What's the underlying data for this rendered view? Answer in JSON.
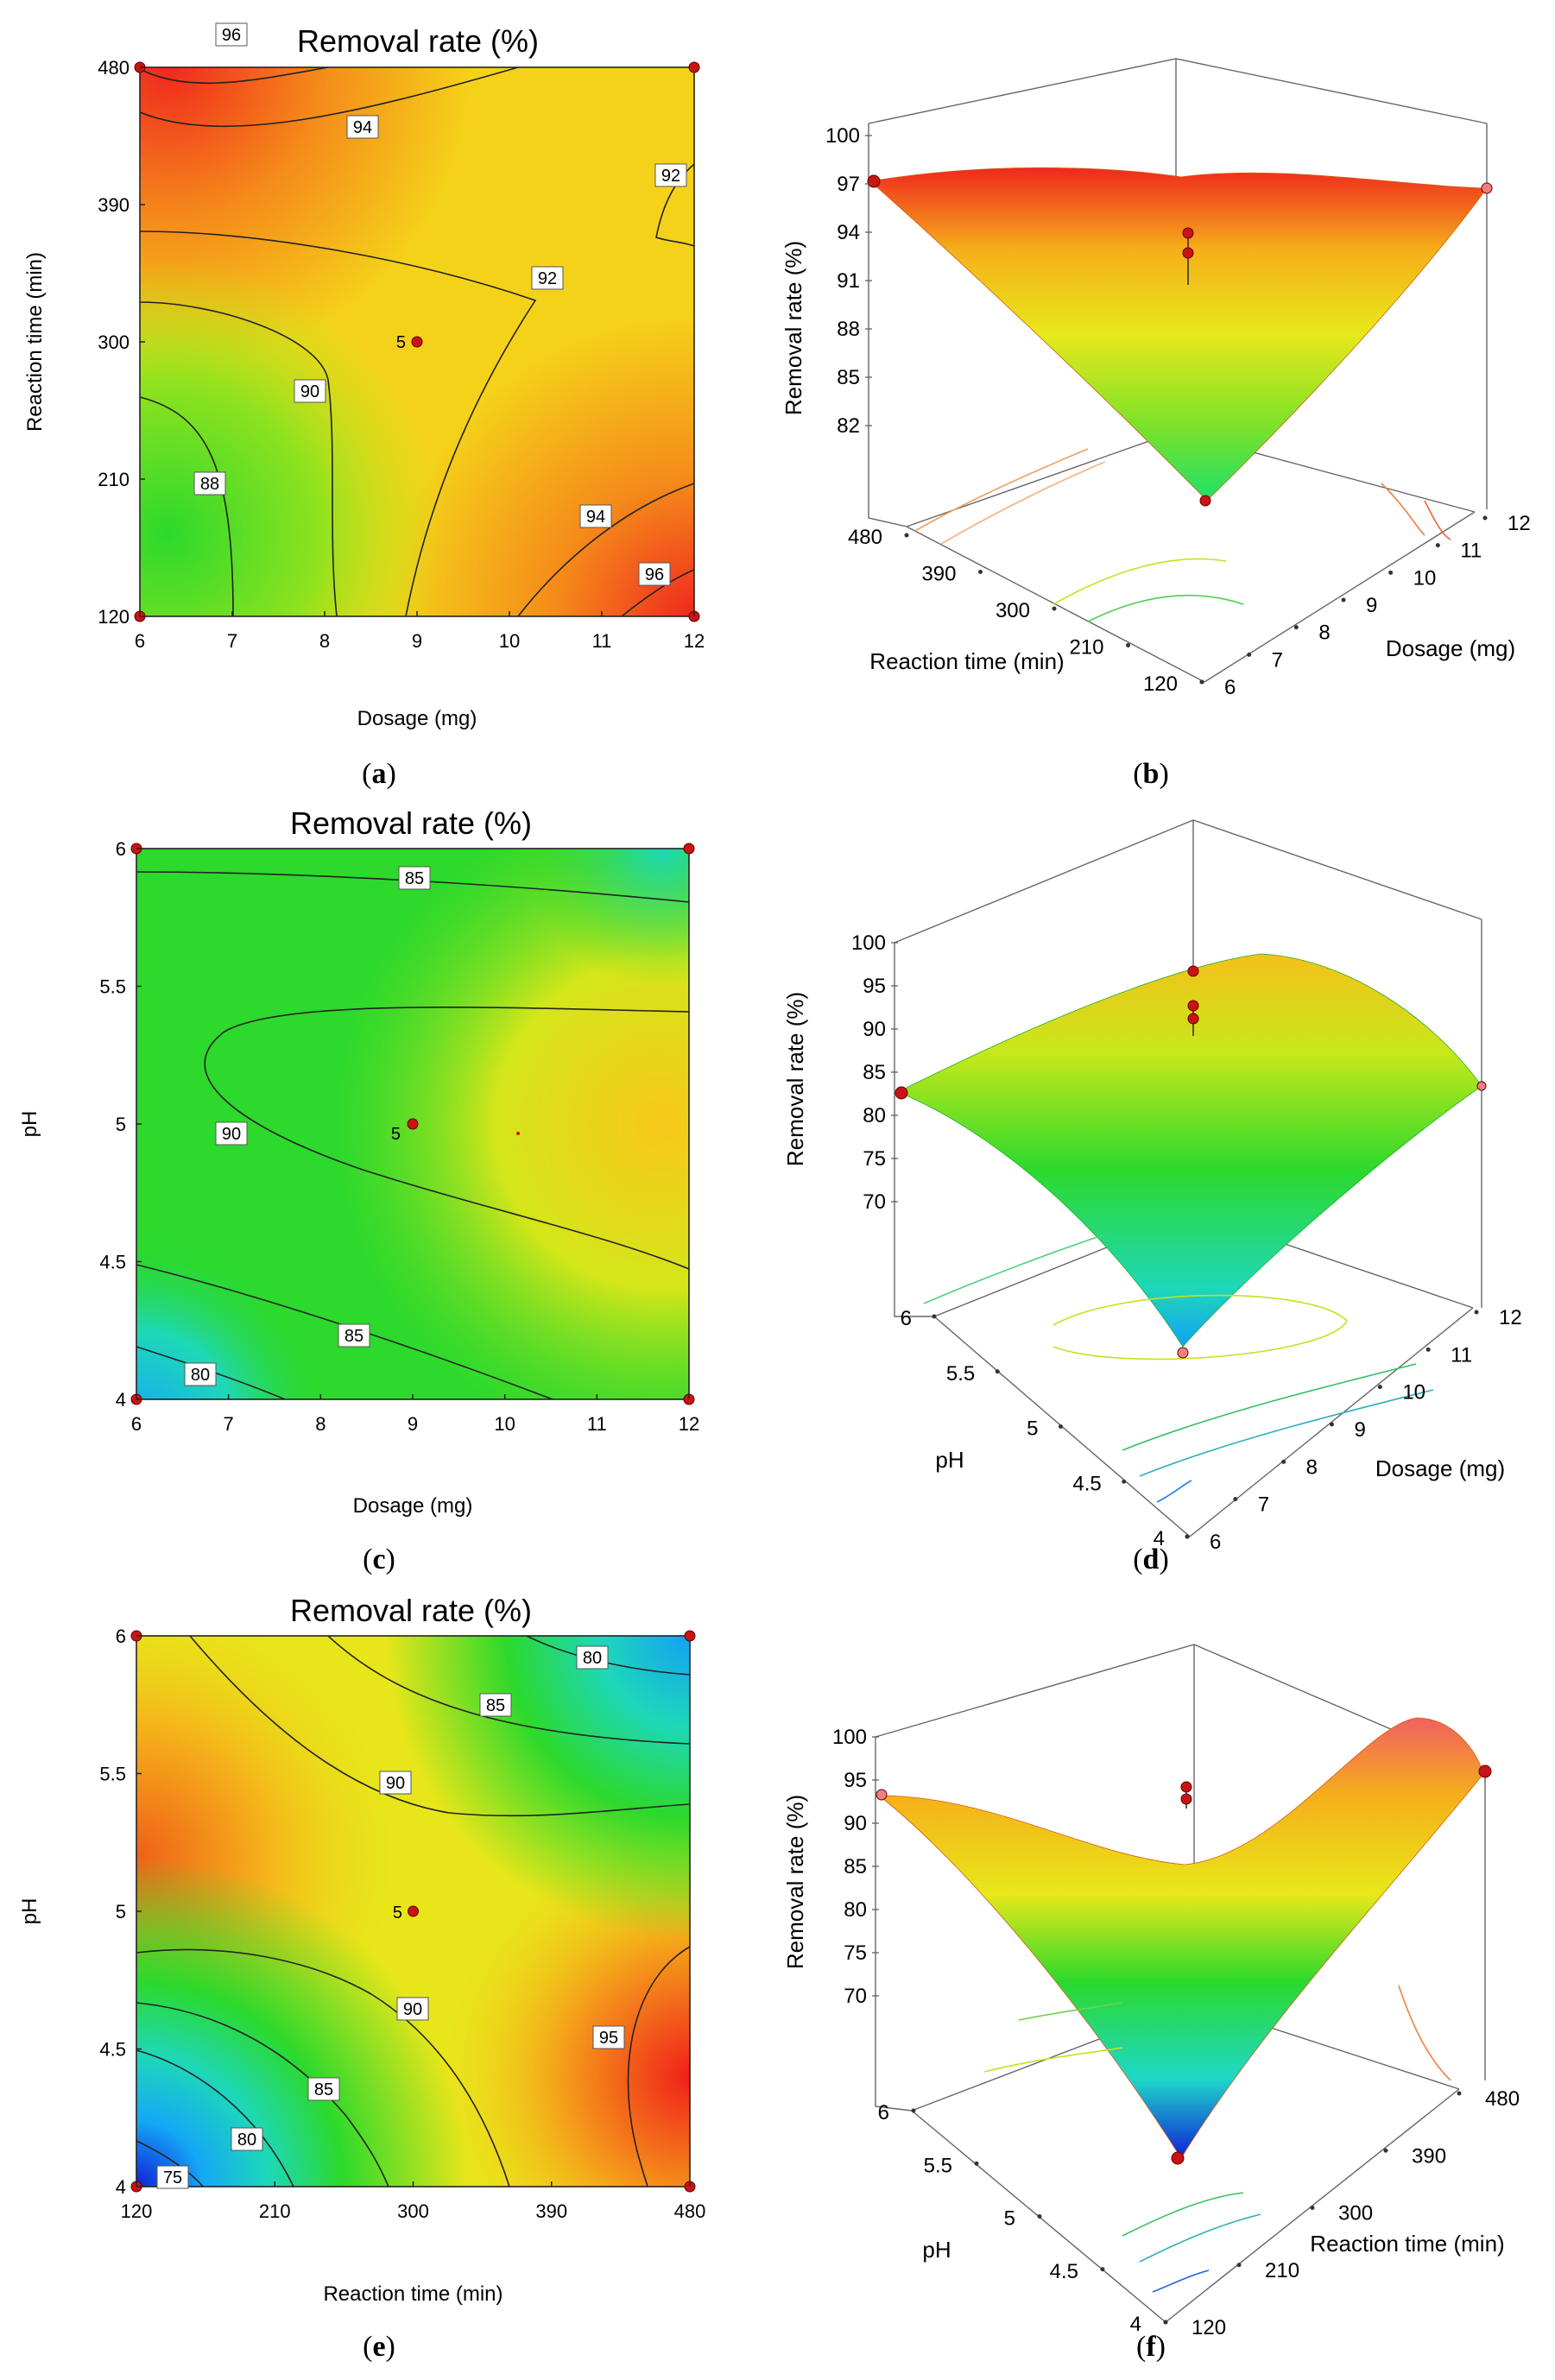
{
  "colors": {
    "high": "#f0281e",
    "mid": "#f7e600",
    "low": "#2cd92c",
    "cold": "#14a8f5",
    "deep": "#1020d8",
    "point": "#c81414"
  },
  "captions": {
    "a": "a",
    "b": "b",
    "c": "c",
    "d": "d",
    "e": "e",
    "f": "f"
  },
  "chart_data": [
    {
      "id": "a",
      "type": "contour",
      "title": "Removal rate (%)",
      "xlabel": "Dosage (mg)",
      "ylabel": "Reaction time (min)",
      "xlim": [
        6,
        12
      ],
      "ylim": [
        120,
        480
      ],
      "xticks": [
        "6",
        "7",
        "8",
        "9",
        "10",
        "11",
        "12"
      ],
      "yticks": [
        "120",
        "210",
        "300",
        "390",
        "480"
      ],
      "contour_labels": [
        "96",
        "94",
        "92",
        "92",
        "90",
        "88",
        "94",
        "96"
      ],
      "center_label": "5",
      "design_points": [
        [
          6,
          120
        ],
        [
          6,
          480
        ],
        [
          12,
          120
        ],
        [
          12,
          480
        ],
        [
          9,
          300
        ]
      ]
    },
    {
      "id": "b",
      "type": "surface3d",
      "zlabel": "Removal rate (%)",
      "xlabel": "Reaction time (min)",
      "ylabel": "Dosage (mg)",
      "zticks": [
        "100",
        "97",
        "94",
        "91",
        "88",
        "85",
        "82"
      ],
      "xticks": [
        "480",
        "390",
        "300",
        "210",
        "120"
      ],
      "yticks": [
        "12",
        "11",
        "10",
        "9",
        "8",
        "7",
        "6"
      ]
    },
    {
      "id": "c",
      "type": "contour",
      "title": "Removal rate (%)",
      "xlabel": "Dosage (mg)",
      "ylabel": "pH",
      "xlim": [
        6,
        12
      ],
      "ylim": [
        4,
        6
      ],
      "xticks": [
        "6",
        "7",
        "8",
        "9",
        "10",
        "11",
        "12"
      ],
      "yticks": [
        "4",
        "4.5",
        "5",
        "5.5",
        "6"
      ],
      "contour_labels": [
        "85",
        "90",
        "85",
        "80"
      ],
      "center_label": "5",
      "design_points": [
        [
          6,
          4
        ],
        [
          6,
          6
        ],
        [
          12,
          4
        ],
        [
          12,
          6
        ],
        [
          9,
          5
        ]
      ]
    },
    {
      "id": "d",
      "type": "surface3d",
      "zlabel": "Removal rate (%)",
      "xlabel": "pH",
      "ylabel": "Dosage (mg)",
      "zticks": [
        "100",
        "95",
        "90",
        "85",
        "80",
        "75",
        "70"
      ],
      "xticks": [
        "6",
        "5.5",
        "5",
        "4.5",
        "4"
      ],
      "yticks": [
        "12",
        "11",
        "10",
        "9",
        "8",
        "7",
        "6"
      ]
    },
    {
      "id": "e",
      "type": "contour",
      "title": "Removal rate (%)",
      "xlabel": "Reaction time (min)",
      "ylabel": "pH",
      "xlim": [
        120,
        480
      ],
      "ylim": [
        4,
        6
      ],
      "xticks": [
        "120",
        "210",
        "300",
        "390",
        "480"
      ],
      "yticks": [
        "4",
        "4.5",
        "5",
        "5.5",
        "6"
      ],
      "contour_labels": [
        "80",
        "85",
        "90",
        "90",
        "95",
        "85",
        "80",
        "75"
      ],
      "center_label": "5",
      "design_points": [
        [
          120,
          4
        ],
        [
          120,
          6
        ],
        [
          480,
          4
        ],
        [
          480,
          6
        ],
        [
          300,
          5
        ]
      ]
    },
    {
      "id": "f",
      "type": "surface3d",
      "zlabel": "Removal rate (%)",
      "xlabel": "pH",
      "ylabel": "Reaction time (min)",
      "zticks": [
        "100",
        "95",
        "90",
        "85",
        "80",
        "75",
        "70"
      ],
      "xticks": [
        "6",
        "5.5",
        "5",
        "4.5",
        "4"
      ],
      "yticks": [
        "480",
        "390",
        "300",
        "210",
        "120"
      ]
    }
  ]
}
